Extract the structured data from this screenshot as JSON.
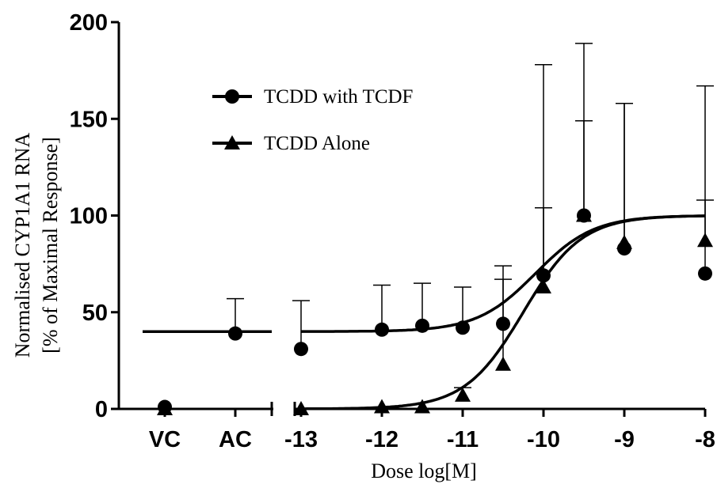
{
  "chart_data": {
    "type": "scatter",
    "xlabel": "Dose log[M]",
    "ylabel_line1": "Normalised CYP1A1 RNA",
    "ylabel_line2": "[% of Maximal Response]",
    "ylim": [
      0,
      200
    ],
    "xlim": [
      -13,
      -8
    ],
    "y_ticks": [
      0,
      50,
      100,
      150,
      200
    ],
    "x_ticks": [
      -13,
      -12,
      -11,
      -10,
      -9,
      -8
    ],
    "x_tick_labels": [
      "-13",
      "-12",
      "-11",
      "-10",
      "-9",
      "-8"
    ],
    "control_categories": [
      "VC",
      "AC"
    ],
    "legend_position": "top-left",
    "series": [
      {
        "name": "TCDD with TCDF",
        "marker": "circle",
        "controls": [
          {
            "category": "VC",
            "y": 1
          },
          {
            "category": "AC",
            "y": 39,
            "err": 18
          }
        ],
        "points": [
          {
            "x": -13,
            "y": 31,
            "err": 25
          },
          {
            "x": -12,
            "y": 41,
            "err": 23
          },
          {
            "x": -11.5,
            "y": 43,
            "err": 22
          },
          {
            "x": -11,
            "y": 42,
            "err": 21
          },
          {
            "x": -10.5,
            "y": 44,
            "err": 30
          },
          {
            "x": -10,
            "y": 69,
            "err": 109
          },
          {
            "x": -9.5,
            "y": 100,
            "err": 89
          },
          {
            "x": -9,
            "y": 83,
            "err": 75
          },
          {
            "x": -8,
            "y": 70,
            "err": 97
          }
        ],
        "fit": {
          "bottom": 40,
          "top": 100,
          "log_ec50": -10.1,
          "hill": 1.2
        },
        "baseline_y": 40
      },
      {
        "name": "TCDD Alone",
        "marker": "triangle",
        "controls": [
          {
            "category": "VC",
            "y": 0
          }
        ],
        "points": [
          {
            "x": -13,
            "y": 0
          },
          {
            "x": -12,
            "y": 1
          },
          {
            "x": -11.5,
            "y": 1
          },
          {
            "x": -11,
            "y": 7,
            "err": 4
          },
          {
            "x": -10.5,
            "y": 23,
            "err": 44
          },
          {
            "x": -10,
            "y": 63,
            "err": 41
          },
          {
            "x": -9.5,
            "y": 100,
            "err": 49
          },
          {
            "x": -9,
            "y": 86,
            "err": 72
          },
          {
            "x": -8,
            "y": 87,
            "err": 21
          }
        ],
        "fit": {
          "bottom": 0,
          "top": 100,
          "log_ec50": -10.25,
          "hill": 1.2
        }
      }
    ]
  }
}
